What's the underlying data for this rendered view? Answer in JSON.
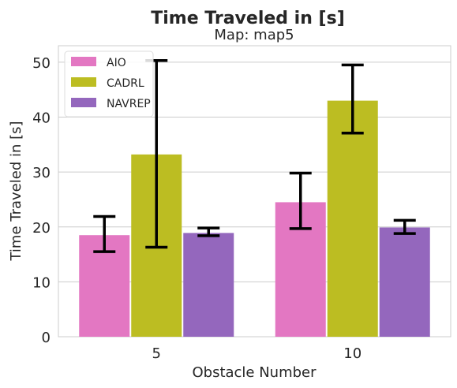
{
  "chart_data": {
    "type": "bar",
    "title": "Time Traveled in [s]",
    "subtitle": "Map: map5",
    "xlabel": "Obstacle Number",
    "ylabel": "Time Traveled in [s]",
    "categories": [
      "5",
      "10"
    ],
    "ylim": [
      0,
      53
    ],
    "yticks": [
      0,
      10,
      20,
      30,
      40,
      50
    ],
    "grid": "horizontal",
    "legend_position": "top-left",
    "series": [
      {
        "name": "AIO",
        "color": "#e377c2",
        "values": [
          18.5,
          24.5
        ],
        "err_low": [
          15.5,
          19.7
        ],
        "err_high": [
          21.9,
          29.8
        ]
      },
      {
        "name": "CADRL",
        "color": "#bcbd22",
        "values": [
          33.2,
          43.0
        ],
        "err_low": [
          16.3,
          37.1
        ],
        "err_high": [
          50.3,
          49.5
        ]
      },
      {
        "name": "NAVREP",
        "color": "#9467bd",
        "values": [
          18.9,
          19.9
        ],
        "err_low": [
          18.4,
          18.8
        ],
        "err_high": [
          19.8,
          21.2
        ]
      }
    ]
  }
}
